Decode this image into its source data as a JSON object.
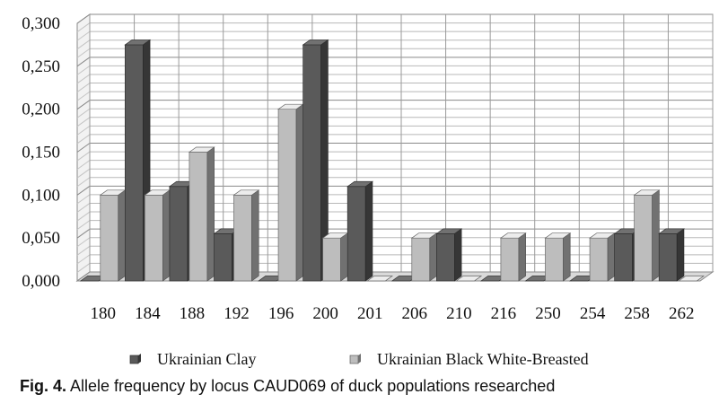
{
  "chart_data": {
    "type": "bar",
    "style": "3d-clustered-column",
    "categories": [
      "180",
      "184",
      "188",
      "192",
      "196",
      "200",
      "201",
      "206",
      "210",
      "216",
      "250",
      "254",
      "258",
      "262"
    ],
    "series": [
      {
        "name": "Ukrainian Clay",
        "color": "#5a5a5a",
        "values": [
          0,
          0.275,
          0.11,
          0.055,
          0,
          0.275,
          0.11,
          0,
          0.055,
          0,
          0,
          0,
          0.055,
          0.055
        ]
      },
      {
        "name": "Ukrainian Black White-Breasted",
        "color": "#bdbdbd",
        "values": [
          0.1,
          0.1,
          0.15,
          0.1,
          0.2,
          0.05,
          0,
          0.05,
          0,
          0.05,
          0.05,
          0.05,
          0.1,
          0
        ]
      }
    ],
    "ylim": [
      0,
      0.3
    ],
    "yticks": [
      "0,000",
      "0,050",
      "0,100",
      "0,150",
      "0,200",
      "0,250",
      "0,300"
    ],
    "grid": true,
    "legend_position": "bottom"
  },
  "caption": {
    "label": "Fig. 4.",
    "text": " Allele frequency by locus CAUD069 of duck populations researched"
  }
}
